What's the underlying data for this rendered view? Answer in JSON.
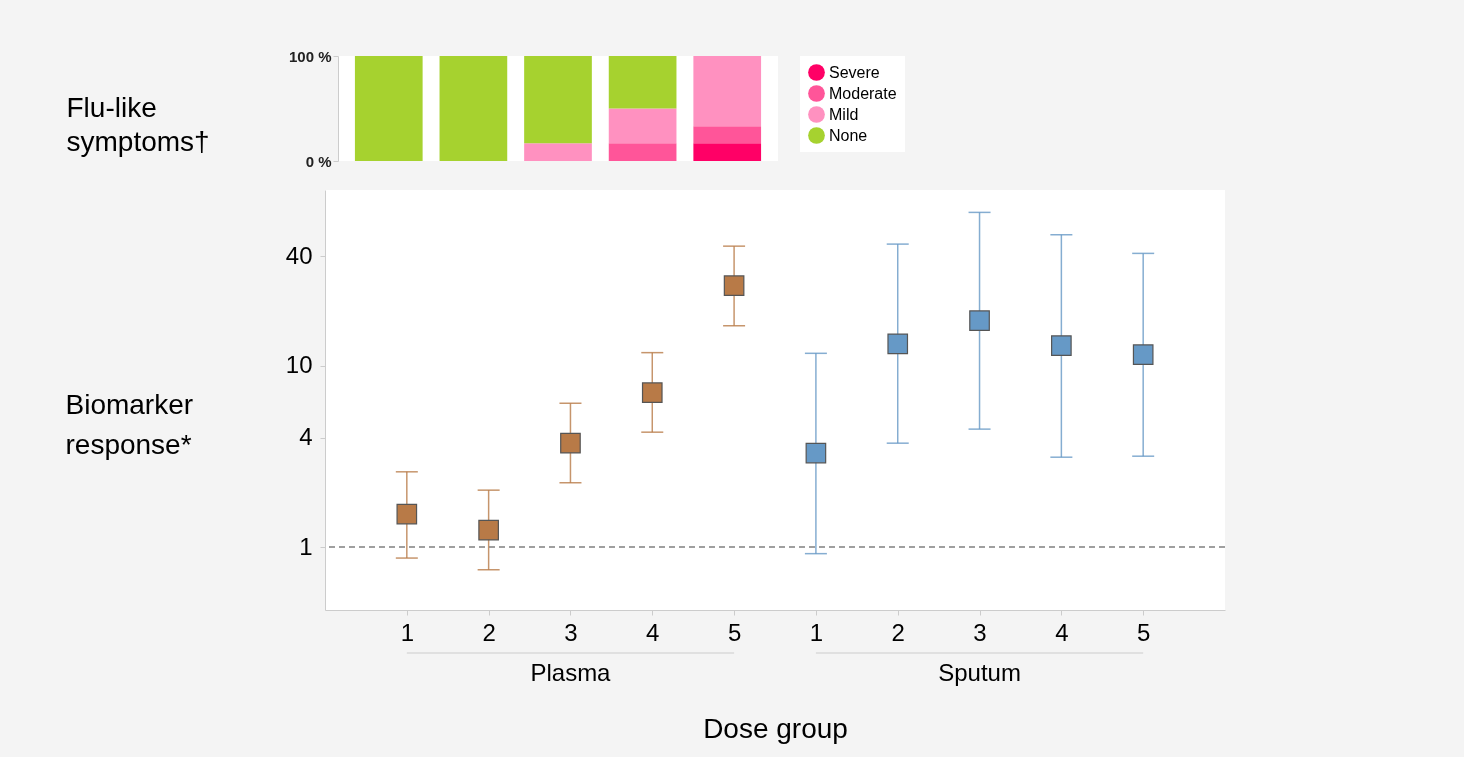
{
  "chart_data": [
    {
      "type": "bar",
      "stacked": true,
      "ylabel": "Flu-like symptoms†",
      "categories": [
        null,
        null,
        null,
        null,
        null
      ],
      "ylim": [
        0,
        100
      ],
      "yticks": [
        {
          "value": 0,
          "label": "0 %"
        },
        {
          "value": 100,
          "label": "100 %"
        }
      ],
      "tick_labels": "y",
      "grid": false,
      "legend": "right",
      "series": [
        {
          "name": "Severe",
          "color": "#ff0066",
          "values": [
            0,
            0,
            0,
            0,
            17
          ]
        },
        {
          "name": "Moderate",
          "color": "#ff5599",
          "values": [
            0,
            0,
            0,
            17,
            16
          ]
        },
        {
          "name": "Mild",
          "color": "#ff91c0",
          "values": [
            0,
            0,
            17,
            33,
            67
          ]
        },
        {
          "name": "None",
          "color": "#a6d22f",
          "values": [
            100,
            100,
            83,
            50,
            0
          ]
        }
      ]
    },
    {
      "type": "scatter",
      "xlabel": "Dose group",
      "ylabel": "Biomarker response*",
      "annotations": [
        "Plasma",
        "Sputum"
      ],
      "categories": [
        "1",
        "2",
        "3",
        "4",
        "5",
        "1",
        "2",
        "3",
        "4",
        "5"
      ],
      "log": true,
      "ylim": [
        0.45,
        93
      ],
      "yticks": [
        1,
        4,
        10,
        40
      ],
      "grid": false,
      "marker": "square",
      "ref_lines": [
        {
          "axis": "y",
          "value": 1,
          "color": "#808080",
          "line_style": "dashed"
        }
      ],
      "series": [
        {
          "color": "#b87a47",
          "values": [
            1.52,
            1.24,
            3.74,
            7.1,
            27.6,
            null,
            null,
            null,
            null,
            null
          ],
          "errors": [
            [
              0.87,
              2.6
            ],
            [
              0.75,
              2.06
            ],
            [
              2.26,
              6.2
            ],
            [
              4.3,
              11.8
            ],
            [
              16.6,
              45.6
            ],
            null,
            null,
            null,
            null,
            null
          ]
        },
        {
          "color": "#6699c6",
          "values": [
            null,
            null,
            null,
            null,
            null,
            3.3,
            13.2,
            17.7,
            12.9,
            11.5
          ],
          "errors": [
            null,
            null,
            null,
            null,
            null,
            [
              0.92,
              11.7
            ],
            [
              3.74,
              46.8
            ],
            [
              4.47,
              70
            ],
            [
              3.13,
              52.7
            ],
            [
              3.17,
              41.6
            ]
          ]
        }
      ]
    }
  ]
}
